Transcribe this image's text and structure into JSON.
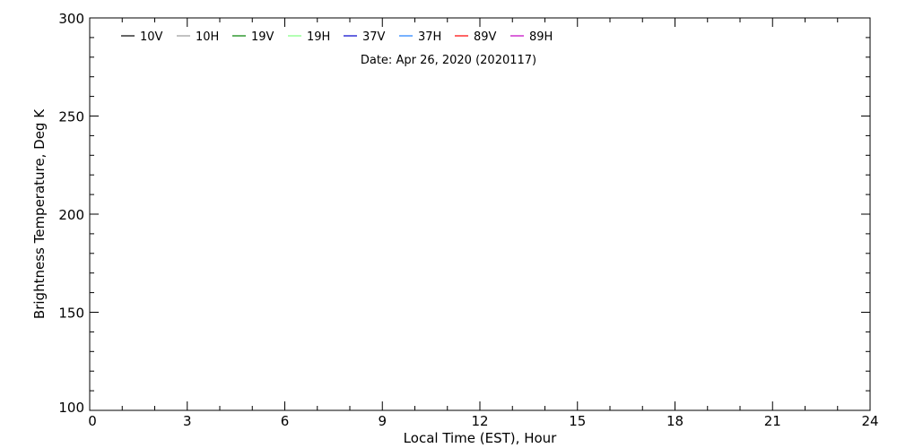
{
  "chart_data": {
    "type": "line",
    "title": "Date: Apr 26, 2020 (2020117)",
    "xlabel": "Local Time (EST), Hour",
    "ylabel": "Brightness Temperature, Deg K",
    "xlim": [
      0,
      24
    ],
    "ylim": [
      100,
      300
    ],
    "x_ticks": [
      0,
      3,
      6,
      9,
      12,
      15,
      18,
      21,
      24
    ],
    "y_ticks": [
      100,
      150,
      200,
      250,
      300
    ],
    "x_minor_step": 1,
    "y_minor_step": 10,
    "grid": false,
    "legend_placement": "top",
    "series": [
      {
        "name": "10V",
        "color": "#000000",
        "values": []
      },
      {
        "name": "10H",
        "color": "#999999",
        "values": []
      },
      {
        "name": "19V",
        "color": "#008000",
        "values": []
      },
      {
        "name": "19H",
        "color": "#80ff80",
        "values": []
      },
      {
        "name": "37V",
        "color": "#0000cc",
        "values": []
      },
      {
        "name": "37H",
        "color": "#1e7fff",
        "values": []
      },
      {
        "name": "89V",
        "color": "#ff0000",
        "values": []
      },
      {
        "name": "89H",
        "color": "#c000c0",
        "values": []
      }
    ]
  }
}
